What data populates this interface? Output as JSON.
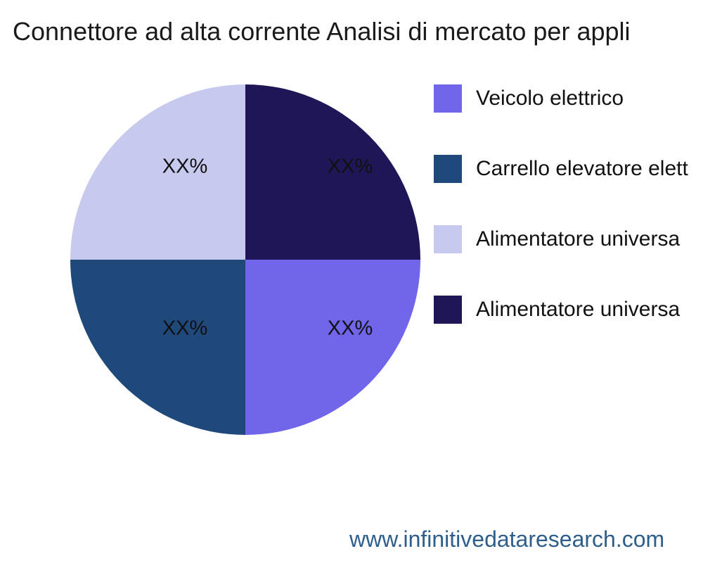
{
  "page": {
    "background": "#ffffff"
  },
  "title": {
    "text": "Connettore ad alta corrente Analisi di mercato per appli",
    "color": "#1a1a1a"
  },
  "watermark": {
    "text": "www.infinitivedataresearch.com",
    "color": "#2E5F8C"
  },
  "chart_data": {
    "type": "pie",
    "title": "Connettore ad alta corrente Analisi di mercato per appli",
    "legend_position": "right",
    "clockwise_from_top": [
      "top-right",
      "bottom-right",
      "bottom-left",
      "top-left"
    ],
    "slices": [
      {
        "label": "Veicolo elettrico",
        "value": 25,
        "pct_label": "XX%",
        "color": "#7165EA",
        "quadrant": "bottom-right"
      },
      {
        "label": "Carrello elevatore elett",
        "value": 25,
        "pct_label": "XX%",
        "color": "#1F497B",
        "quadrant": "bottom-left"
      },
      {
        "label": "Alimentatore universa",
        "value": 25,
        "pct_label": "XX%",
        "color": "#C7C9EE",
        "quadrant": "top-left"
      },
      {
        "label": "Alimentatore universa",
        "value": 25,
        "pct_label": "XX%",
        "color": "#1E1656",
        "quadrant": "top-right"
      }
    ]
  }
}
